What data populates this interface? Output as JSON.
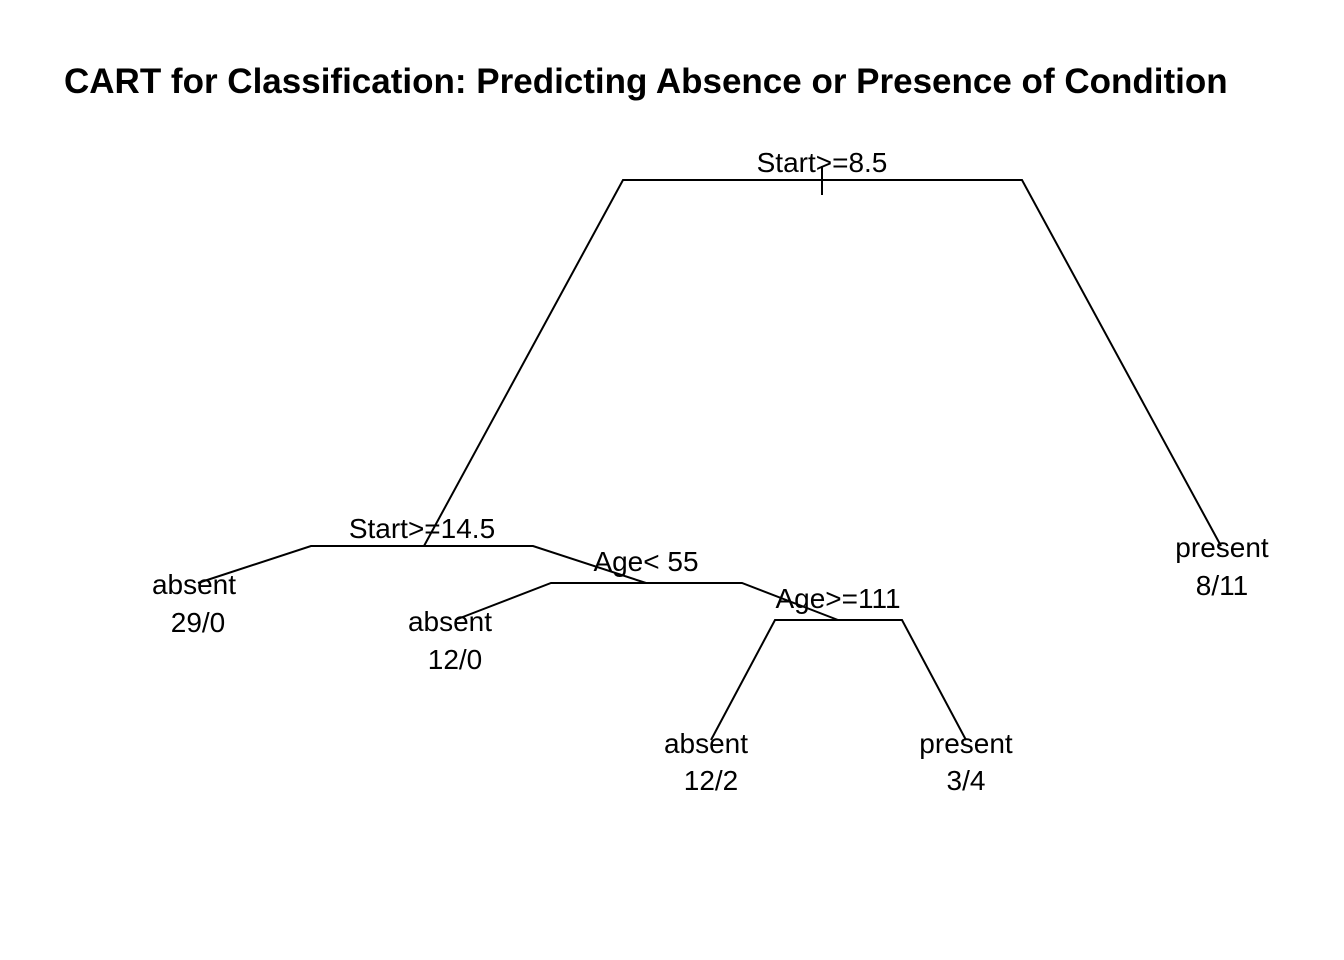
{
  "title": "CART for Classification: Predicting Absence or Presence of Condition",
  "tree": {
    "split": "Start>=8.5",
    "left": {
      "split": "Start>=14.5",
      "left": {
        "class": "absent",
        "counts": "29/0"
      },
      "right": {
        "split": "Age< 55",
        "left": {
          "class": "absent",
          "counts": "12/0"
        },
        "right": {
          "split": "Age>=111",
          "left": {
            "class": "absent",
            "counts": "12/2"
          },
          "right": {
            "class": "present",
            "counts": "3/4"
          }
        }
      }
    },
    "right": {
      "class": "present",
      "counts": "8/11"
    }
  },
  "colors": {
    "line": "#000000",
    "text": "#000000",
    "background": "#ffffff"
  }
}
